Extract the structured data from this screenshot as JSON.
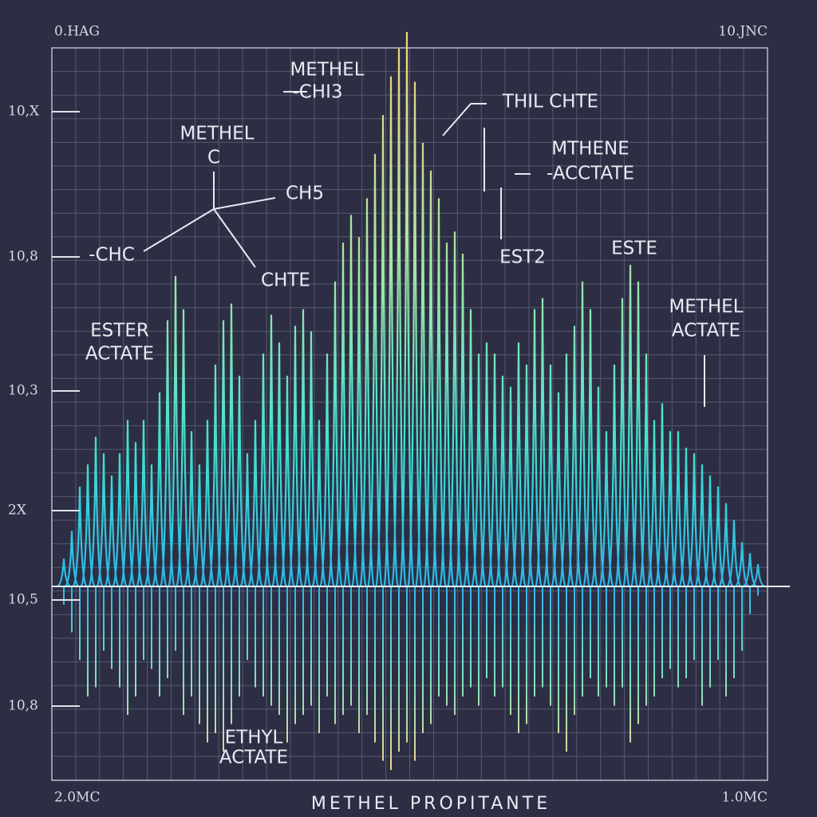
{
  "chart_data": {
    "type": "spectrum",
    "title": "METHEL PROPITANTE",
    "corner_labels": [
      "0.HAG",
      "10.JNC",
      "2.0MC",
      "1.0MC"
    ],
    "y_labels": [
      "10,X",
      "10,8",
      "10,3",
      "2X",
      "10,5",
      "10,8"
    ],
    "annotations": [
      "METHEL",
      "-CHI3",
      "METHEL",
      "C",
      "CH5",
      "-CHC",
      "CHTE",
      "ESTER",
      "ACTATE",
      "THIL CHTE",
      "MTHENE",
      "-ACCTATE",
      "EST2",
      "ESTE",
      "METHEL",
      "ACTATE",
      "ETHYL",
      "ACTATE"
    ],
    "values": [
      5,
      10,
      18,
      22,
      27,
      24,
      20,
      24,
      30,
      26,
      30,
      22,
      35,
      48,
      56,
      50,
      28,
      22,
      30,
      40,
      48,
      51,
      38,
      24,
      30,
      42,
      49,
      44,
      38,
      47,
      50,
      46,
      30,
      42,
      55,
      62,
      67,
      63,
      70,
      78,
      85,
      92,
      97,
      100,
      91,
      80,
      75,
      70,
      62,
      64,
      60,
      50,
      42,
      44,
      42,
      38,
      36,
      44,
      40,
      50,
      52,
      40,
      35,
      42,
      47,
      55,
      50,
      36,
      28,
      40,
      52,
      58,
      55,
      42,
      30,
      33,
      28,
      28,
      25,
      24,
      22,
      20,
      18,
      15,
      12,
      8,
      6,
      4
    ],
    "mirror_values": [
      10,
      25,
      40,
      60,
      55,
      35,
      45,
      55,
      70,
      60,
      40,
      45,
      60,
      50,
      35,
      70,
      60,
      75,
      85,
      80,
      90,
      75,
      60,
      40,
      55,
      60,
      65,
      70,
      85,
      75,
      70,
      65,
      80,
      60,
      75,
      70,
      65,
      80,
      70,
      85,
      95,
      100,
      90,
      85,
      95,
      80,
      75,
      60,
      65,
      70,
      60,
      55,
      65,
      50,
      60,
      55,
      70,
      80,
      75,
      60,
      55,
      65,
      80,
      90,
      70,
      60,
      50,
      60,
      55,
      65,
      55,
      85,
      75,
      65,
      60,
      50,
      45,
      55,
      50,
      40,
      65,
      55,
      40,
      60,
      50,
      35,
      15,
      5
    ],
    "ylim": [
      0,
      100
    ]
  }
}
